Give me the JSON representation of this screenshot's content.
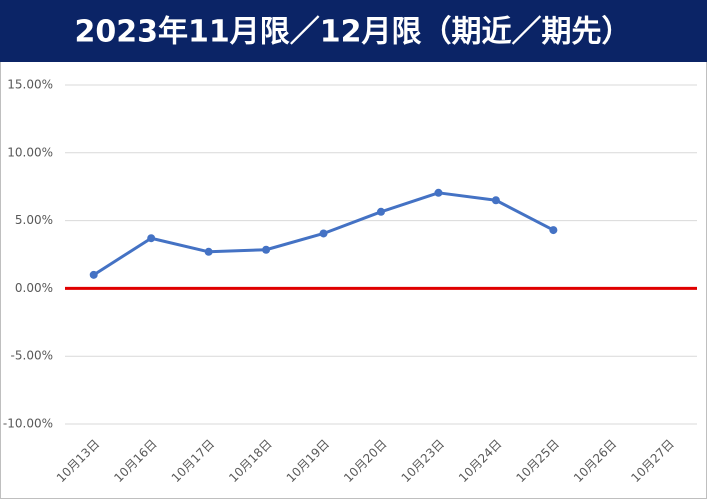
{
  "chart_data": {
    "type": "line",
    "title": "2023年11月限／12月限（期近／期先）",
    "categories": [
      "10月13日",
      "10月16日",
      "10月17日",
      "10月18日",
      "10月19日",
      "10月20日",
      "10月23日",
      "10月24日",
      "10月25日",
      "10月26日",
      "10月27日"
    ],
    "series": [
      {
        "color": "#4472c4",
        "values": [
          1.0,
          3.7,
          2.7,
          2.85,
          4.05,
          5.65,
          7.05,
          6.5,
          4.3,
          null,
          null
        ]
      }
    ],
    "ylim": [
      -10,
      15
    ],
    "yticks": [
      {
        "value": -10,
        "label": "-10.00%"
      },
      {
        "value": -5,
        "label": "-5.00%"
      },
      {
        "value": 0,
        "label": "0.00%"
      },
      {
        "value": 5,
        "label": "5.00%"
      },
      {
        "value": 10,
        "label": "10.00%"
      },
      {
        "value": 15,
        "label": "15.00%"
      }
    ],
    "grid": true,
    "zero_line_color": "#e00000"
  }
}
